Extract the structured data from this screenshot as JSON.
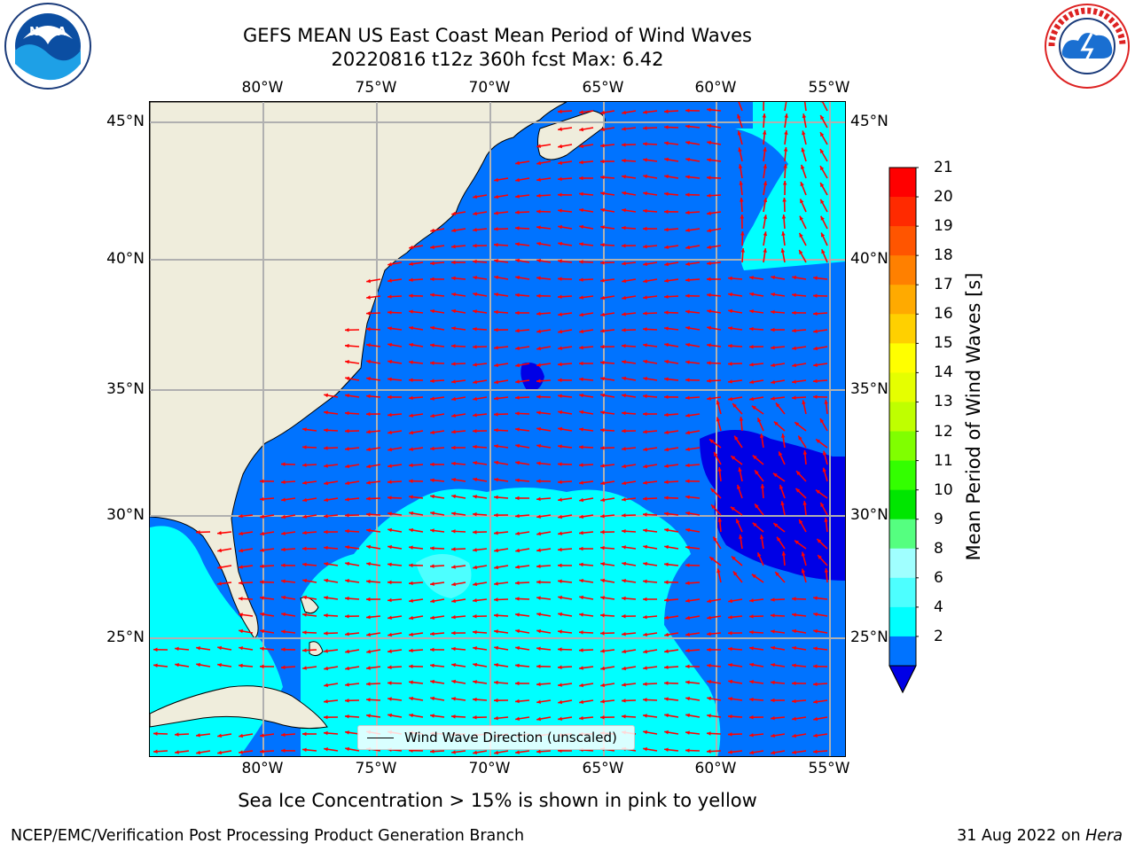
{
  "header": {
    "title_line1": "GEFS MEAN US East Coast Mean Period of Wind Waves",
    "title_line2": "20220816 t12z 360h fcst   Max: 6.42"
  },
  "map": {
    "lon_labels": [
      "80°W",
      "75°W",
      "70°W",
      "65°W",
      "60°W",
      "55°W"
    ],
    "lat_labels": [
      "45°N",
      "40°N",
      "35°N",
      "30°N",
      "25°N"
    ],
    "legend_label": "Wind Wave Direction (unscaled)",
    "arrow_color": "#ff0000",
    "land_color": "#efeddc",
    "ocean_colors": {
      "band_2_4": "#0073ff",
      "band_4_6": "#00ffff",
      "band_6_8": "#4dffff",
      "below_2": "#0000e6"
    }
  },
  "colorbar": {
    "label": "Mean Period of Wind Waves [s]",
    "ticks": [
      "21",
      "20",
      "19",
      "18",
      "17",
      "16",
      "15",
      "14",
      "13",
      "12",
      "11",
      "10",
      "9",
      "8",
      "6",
      "4",
      "2"
    ],
    "colors": [
      "#ff0000",
      "#ff2a00",
      "#ff5500",
      "#ff8000",
      "#ffaa00",
      "#ffd000",
      "#ffff00",
      "#e5ff00",
      "#bfff00",
      "#80ff00",
      "#33ff00",
      "#00e600",
      "#55ff80",
      "#a0ffff",
      "#4dffff",
      "#00ffff",
      "#0073ff"
    ],
    "under_color": "#0000e6"
  },
  "note": "Sea Ice Concentration > 15% is shown in pink to yellow",
  "footer": {
    "left": "NCEP/EMC/Verification Post Processing Product Generation Branch",
    "right_date": "31 Aug 2022 on",
    "right_machine": "Hera"
  },
  "logos": {
    "noaa": "NOAA",
    "nws": "NATIONAL WEATHER SERVICE"
  }
}
